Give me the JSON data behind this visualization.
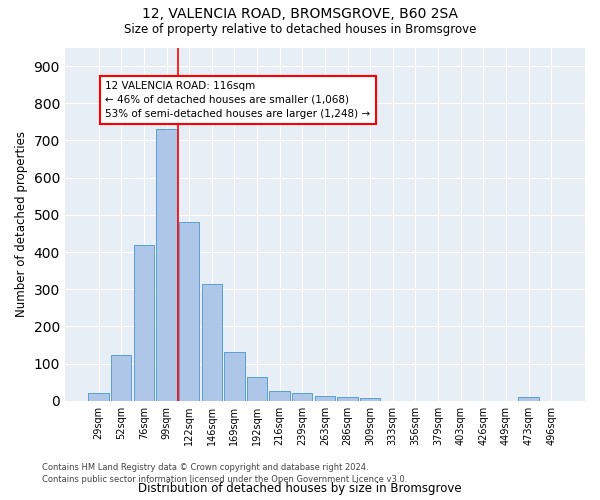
{
  "title1": "12, VALENCIA ROAD, BROMSGROVE, B60 2SA",
  "title2": "Size of property relative to detached houses in Bromsgrove",
  "xlabel": "Distribution of detached houses by size in Bromsgrove",
  "ylabel": "Number of detached properties",
  "categories": [
    "29sqm",
    "52sqm",
    "76sqm",
    "99sqm",
    "122sqm",
    "146sqm",
    "169sqm",
    "192sqm",
    "216sqm",
    "239sqm",
    "263sqm",
    "286sqm",
    "309sqm",
    "333sqm",
    "356sqm",
    "379sqm",
    "403sqm",
    "426sqm",
    "449sqm",
    "473sqm",
    "496sqm"
  ],
  "values": [
    20,
    122,
    420,
    730,
    480,
    315,
    132,
    65,
    25,
    22,
    12,
    10,
    8,
    0,
    0,
    0,
    0,
    0,
    0,
    9,
    0
  ],
  "bar_color": "#aec6e8",
  "bar_edge_color": "#5a9fd4",
  "vline_index": 3.5,
  "vline_color": "red",
  "annotation_text": "12 VALENCIA ROAD: 116sqm\n← 46% of detached houses are smaller (1,068)\n53% of semi-detached houses are larger (1,248) →",
  "yticks": [
    0,
    100,
    200,
    300,
    400,
    500,
    600,
    700,
    800,
    900
  ],
  "ylim": [
    0,
    950
  ],
  "background_color": "#e8eef5",
  "footer_line1": "Contains HM Land Registry data © Crown copyright and database right 2024.",
  "footer_line2": "Contains public sector information licensed under the Open Government Licence v3.0."
}
